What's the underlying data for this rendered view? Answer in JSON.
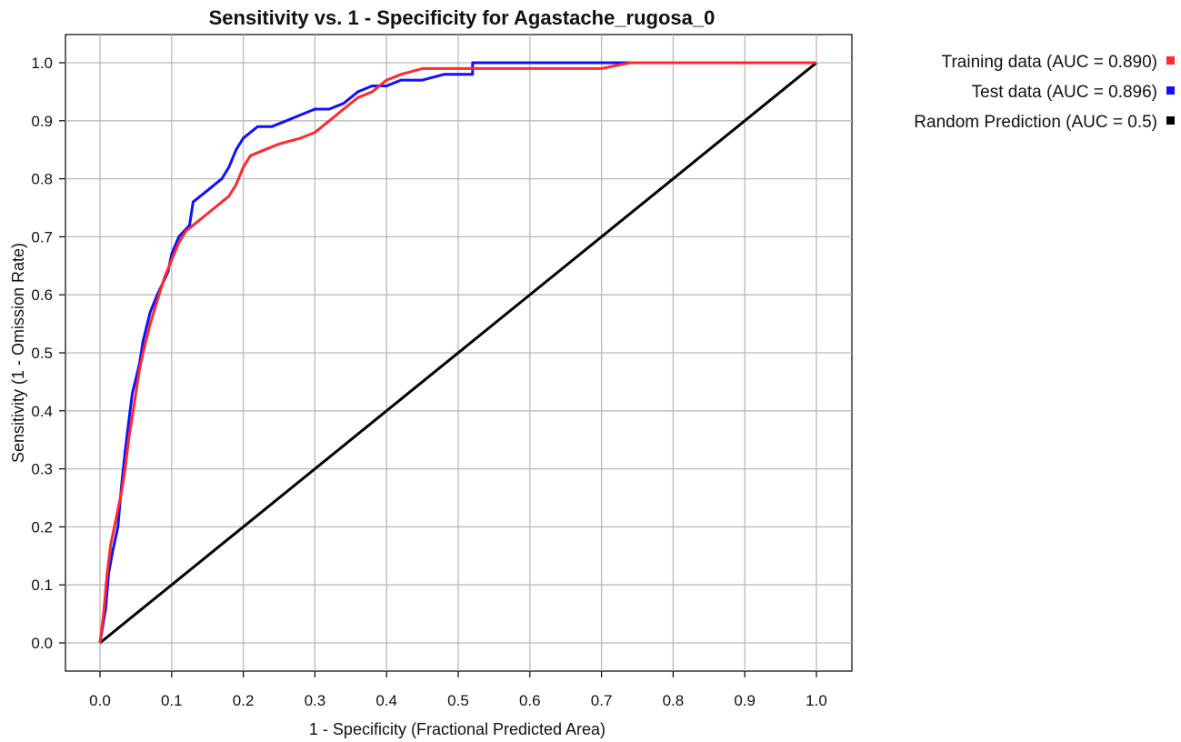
{
  "chart_data": {
    "type": "line",
    "title": "Sensitivity vs. 1 - Specificity for Agastache_rugosa_0",
    "xlabel": "1 - Specificity  (Fractional Predicted Area)",
    "ylabel": "Sensitivity  (1 - Omission Rate)",
    "xlim": [
      0.0,
      1.0
    ],
    "ylim": [
      0.0,
      1.0
    ],
    "x_ticks": [
      "0.0",
      "0.1",
      "0.2",
      "0.3",
      "0.4",
      "0.5",
      "0.6",
      "0.7",
      "0.8",
      "0.9",
      "1.0"
    ],
    "y_ticks": [
      "0.0",
      "0.1",
      "0.2",
      "0.3",
      "0.4",
      "0.5",
      "0.6",
      "0.7",
      "0.8",
      "0.9",
      "1.0"
    ],
    "grid": true,
    "legend_position": "top-right, outside plot",
    "series": [
      {
        "name": "Training data (AUC = 0.890)",
        "color": "#ff2a2a",
        "points": [
          [
            0.0,
            0.0
          ],
          [
            0.005,
            0.05
          ],
          [
            0.01,
            0.12
          ],
          [
            0.015,
            0.17
          ],
          [
            0.02,
            0.2
          ],
          [
            0.025,
            0.23
          ],
          [
            0.03,
            0.26
          ],
          [
            0.035,
            0.3
          ],
          [
            0.04,
            0.35
          ],
          [
            0.045,
            0.39
          ],
          [
            0.05,
            0.43
          ],
          [
            0.055,
            0.47
          ],
          [
            0.06,
            0.5
          ],
          [
            0.07,
            0.55
          ],
          [
            0.08,
            0.59
          ],
          [
            0.09,
            0.63
          ],
          [
            0.1,
            0.66
          ],
          [
            0.11,
            0.69
          ],
          [
            0.12,
            0.71
          ],
          [
            0.14,
            0.73
          ],
          [
            0.16,
            0.75
          ],
          [
            0.18,
            0.77
          ],
          [
            0.19,
            0.79
          ],
          [
            0.2,
            0.82
          ],
          [
            0.21,
            0.84
          ],
          [
            0.23,
            0.85
          ],
          [
            0.25,
            0.86
          ],
          [
            0.28,
            0.87
          ],
          [
            0.3,
            0.88
          ],
          [
            0.32,
            0.9
          ],
          [
            0.34,
            0.92
          ],
          [
            0.36,
            0.94
          ],
          [
            0.38,
            0.95
          ],
          [
            0.4,
            0.97
          ],
          [
            0.42,
            0.98
          ],
          [
            0.45,
            0.99
          ],
          [
            0.5,
            0.99
          ],
          [
            0.55,
            0.99
          ],
          [
            0.6,
            0.99
          ],
          [
            0.7,
            0.99
          ],
          [
            0.74,
            1.0
          ],
          [
            0.8,
            1.0
          ],
          [
            1.0,
            1.0
          ]
        ]
      },
      {
        "name": "Test data (AUC = 0.896)",
        "color": "#1010ff",
        "points": [
          [
            0.0,
            0.0
          ],
          [
            0.008,
            0.06
          ],
          [
            0.012,
            0.12
          ],
          [
            0.018,
            0.16
          ],
          [
            0.025,
            0.2
          ],
          [
            0.03,
            0.27
          ],
          [
            0.035,
            0.33
          ],
          [
            0.04,
            0.38
          ],
          [
            0.045,
            0.43
          ],
          [
            0.055,
            0.48
          ],
          [
            0.06,
            0.52
          ],
          [
            0.07,
            0.57
          ],
          [
            0.08,
            0.6
          ],
          [
            0.095,
            0.64
          ],
          [
            0.1,
            0.67
          ],
          [
            0.11,
            0.7
          ],
          [
            0.125,
            0.72
          ],
          [
            0.13,
            0.76
          ],
          [
            0.15,
            0.78
          ],
          [
            0.17,
            0.8
          ],
          [
            0.18,
            0.82
          ],
          [
            0.19,
            0.85
          ],
          [
            0.2,
            0.87
          ],
          [
            0.22,
            0.89
          ],
          [
            0.24,
            0.89
          ],
          [
            0.26,
            0.9
          ],
          [
            0.28,
            0.91
          ],
          [
            0.3,
            0.92
          ],
          [
            0.32,
            0.92
          ],
          [
            0.34,
            0.93
          ],
          [
            0.36,
            0.95
          ],
          [
            0.38,
            0.96
          ],
          [
            0.4,
            0.96
          ],
          [
            0.42,
            0.97
          ],
          [
            0.45,
            0.97
          ],
          [
            0.48,
            0.98
          ],
          [
            0.52,
            0.98
          ],
          [
            0.52,
            1.0
          ],
          [
            0.6,
            1.0
          ],
          [
            0.7,
            1.0
          ],
          [
            0.8,
            1.0
          ],
          [
            1.0,
            1.0
          ]
        ]
      },
      {
        "name": "Random Prediction (AUC = 0.5)",
        "color": "#000000",
        "points": [
          [
            0.0,
            0.0
          ],
          [
            1.0,
            1.0
          ]
        ]
      }
    ]
  }
}
